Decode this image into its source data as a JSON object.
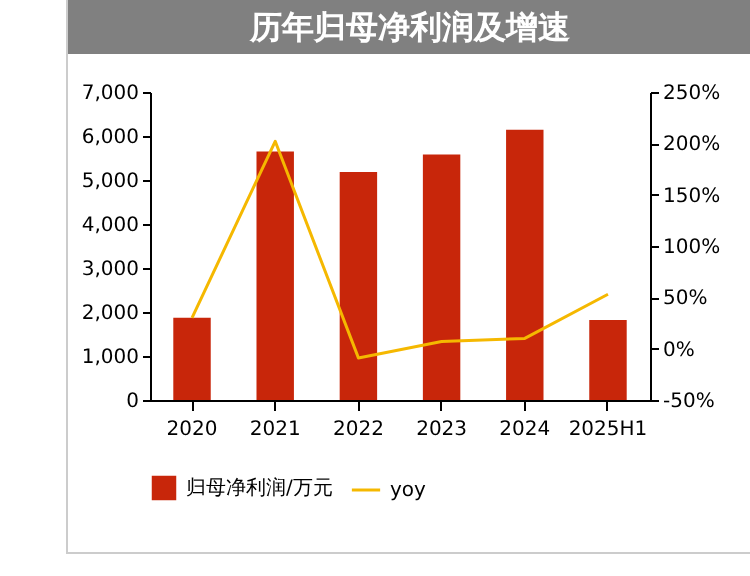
{
  "chart_data": {
    "type": "bar",
    "title": "历年归母净利润及增速",
    "categories": [
      "2020",
      "2021",
      "2022",
      "2023",
      "2024",
      "2025H1"
    ],
    "series": [
      {
        "name": "归母净利润/万元",
        "color": "#c8260a",
        "values": [
          1870,
          5650,
          5180,
          5580,
          6140,
          1820
        ]
      },
      {
        "name": "yoy",
        "type": "line",
        "axis": "y2",
        "color": "#f5b800",
        "values": [
          30,
          202,
          -9,
          7,
          10,
          53
        ]
      }
    ],
    "ylim": [
      0,
      7000
    ],
    "yticks": [
      {
        "value": 0,
        "label": "0"
      },
      {
        "value": 1000,
        "label": "1,000"
      },
      {
        "value": 2000,
        "label": "2,000"
      },
      {
        "value": 3000,
        "label": "3,000"
      },
      {
        "value": 4000,
        "label": "4,000"
      },
      {
        "value": 5000,
        "label": "5,000"
      },
      {
        "value": 6000,
        "label": "6,000"
      },
      {
        "value": 7000,
        "label": "7,000"
      }
    ],
    "y2lim": [
      -50,
      250
    ],
    "y2ticks": [
      {
        "value": -50,
        "label": "-50%"
      },
      {
        "value": 0,
        "label": "0%"
      },
      {
        "value": 50,
        "label": "50%"
      },
      {
        "value": 100,
        "label": "100%"
      },
      {
        "value": 150,
        "label": "150%"
      },
      {
        "value": 200,
        "label": "200%"
      },
      {
        "value": 250,
        "label": "250%"
      }
    ],
    "legend": "bottom",
    "grid": false
  }
}
